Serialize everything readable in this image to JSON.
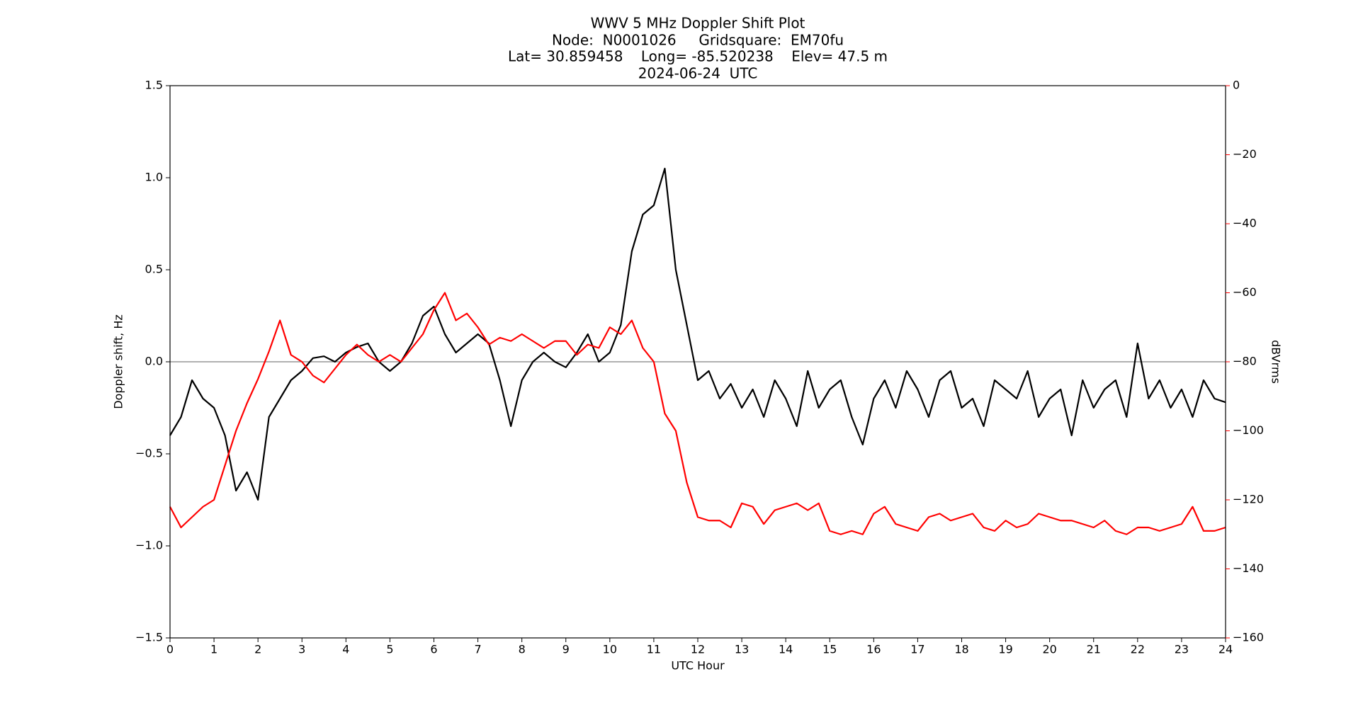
{
  "chart_data": {
    "type": "line",
    "title_lines": [
      "WWV 5 MHz Doppler Shift Plot",
      "Node:  N0001026     Gridsquare:  EM70fu",
      "Lat= 30.859458    Long= -85.520238    Elev= 47.5 m",
      "2024-06-24  UTC"
    ],
    "x_label": "UTC Hour",
    "y_label": "Doppler shift, Hz",
    "y2_label": "dBVrms",
    "y2_color": "#ff0000",
    "reference_line": 0,
    "xlim": [
      0,
      24
    ],
    "xticks": [
      0,
      1,
      2,
      3,
      4,
      5,
      6,
      7,
      8,
      9,
      10,
      11,
      12,
      13,
      14,
      15,
      16,
      17,
      18,
      19,
      20,
      21,
      22,
      23,
      24
    ],
    "ylim": [
      -1.5,
      1.5
    ],
    "yticks": [
      {
        "value": -1.5,
        "label": "−1.5"
      },
      {
        "value": -1.0,
        "label": "−1.0"
      },
      {
        "value": -0.5,
        "label": "−0.5"
      },
      {
        "value": 0,
        "label": "0.0"
      },
      0.5,
      {
        "value": 1.0,
        "label": "1.0"
      },
      1.5
    ],
    "y2lim": [
      -160,
      0
    ],
    "y2ticks": [
      {
        "value": -160,
        "label": "−160"
      },
      {
        "value": -140,
        "label": "−140"
      },
      {
        "value": -120,
        "label": "−120"
      },
      {
        "value": -100,
        "label": "−100"
      },
      {
        "value": -80,
        "label": "−80"
      },
      {
        "value": -60,
        "label": "−60"
      },
      {
        "value": -40,
        "label": "−40"
      },
      {
        "value": -20,
        "label": "−20"
      },
      0
    ],
    "x": [
      0,
      0.25,
      0.5,
      0.75,
      1,
      1.25,
      1.5,
      1.75,
      2,
      2.25,
      2.5,
      2.75,
      3,
      3.25,
      3.5,
      3.75,
      4,
      4.25,
      4.5,
      4.75,
      5,
      5.25,
      5.5,
      5.75,
      6,
      6.25,
      6.5,
      6.75,
      7,
      7.25,
      7.5,
      7.75,
      8,
      8.25,
      8.5,
      8.75,
      9,
      9.25,
      9.5,
      9.75,
      10,
      10.25,
      10.5,
      10.75,
      11,
      11.25,
      11.5,
      11.75,
      12,
      12.25,
      12.5,
      12.75,
      13,
      13.25,
      13.5,
      13.75,
      14,
      14.25,
      14.5,
      14.75,
      15,
      15.25,
      15.5,
      15.75,
      16,
      16.25,
      16.5,
      16.75,
      17,
      17.25,
      17.5,
      17.75,
      18,
      18.25,
      18.5,
      18.75,
      19,
      19.25,
      19.5,
      19.75,
      20,
      20.25,
      20.5,
      20.75,
      21,
      21.25,
      21.5,
      21.75,
      22,
      22.25,
      22.5,
      22.75,
      23,
      23.25,
      23.5,
      23.75,
      24
    ],
    "series": [
      {
        "color": "#000000",
        "axis": "y",
        "values": [
          -0.4,
          -0.3,
          -0.1,
          -0.2,
          -0.25,
          -0.4,
          -0.7,
          -0.6,
          -0.75,
          -0.3,
          -0.2,
          -0.1,
          -0.05,
          0.02,
          0.03,
          0.0,
          0.05,
          0.08,
          0.1,
          0.0,
          -0.05,
          0.0,
          0.1,
          0.25,
          0.3,
          0.15,
          0.05,
          0.1,
          0.15,
          0.1,
          -0.1,
          -0.35,
          -0.1,
          0.0,
          0.05,
          0.0,
          -0.03,
          0.05,
          0.15,
          0.0,
          0.05,
          0.2,
          0.6,
          0.8,
          0.85,
          1.05,
          0.5,
          0.2,
          -0.1,
          -0.05,
          -0.2,
          -0.12,
          -0.25,
          -0.15,
          -0.3,
          -0.1,
          -0.2,
          -0.35,
          -0.05,
          -0.25,
          -0.15,
          -0.1,
          -0.3,
          -0.45,
          -0.2,
          -0.1,
          -0.25,
          -0.05,
          -0.15,
          -0.3,
          -0.1,
          -0.05,
          -0.25,
          -0.2,
          -0.35,
          -0.1,
          -0.15,
          -0.2,
          -0.05,
          -0.3,
          -0.2,
          -0.15,
          -0.4,
          -0.1,
          -0.25,
          -0.15,
          -0.1,
          -0.3,
          0.1,
          -0.2,
          -0.1,
          -0.25,
          -0.15,
          -0.3,
          -0.1,
          -0.2,
          -0.22
        ]
      },
      {
        "color": "#ff0000",
        "axis": "y2",
        "values": [
          -122,
          -128,
          -125,
          -122,
          -120,
          -110,
          -100,
          -92,
          -85,
          -77,
          -68,
          -78,
          -80,
          -84,
          -86,
          -82,
          -78,
          -75,
          -78,
          -80,
          -78,
          -80,
          -76,
          -72,
          -65,
          -60,
          -68,
          -66,
          -70,
          -75,
          -73,
          -74,
          -72,
          -74,
          -76,
          -74,
          -74,
          -78,
          -75,
          -76,
          -70,
          -72,
          -68,
          -76,
          -80,
          -95,
          -100,
          -115,
          -125,
          -126,
          -126,
          -128,
          -121,
          -122,
          -127,
          -123,
          -122,
          -121,
          -123,
          -121,
          -129,
          -130,
          -129,
          -130,
          -124,
          -122,
          -127,
          -128,
          -129,
          -125,
          -124,
          -126,
          -125,
          -124,
          -128,
          -129,
          -126,
          -128,
          -127,
          -124,
          -125,
          -126,
          -126,
          -127,
          -128,
          -126,
          -129,
          -130,
          -128,
          -128,
          -129,
          -128,
          -127,
          -122,
          -129,
          -129,
          -128
        ]
      }
    ]
  }
}
